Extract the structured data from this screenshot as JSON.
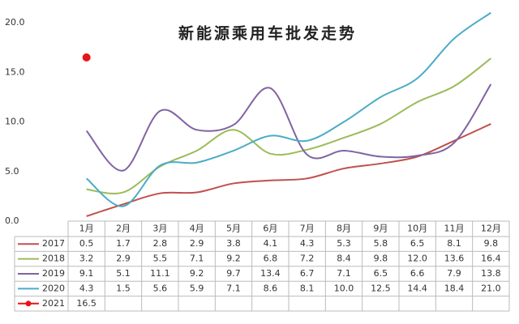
{
  "chart_data": {
    "type": "line",
    "title": "新能源乘用车批发走势",
    "categories": [
      "1月",
      "2月",
      "3月",
      "4月",
      "5月",
      "6月",
      "7月",
      "8月",
      "9月",
      "10月",
      "11月",
      "12月"
    ],
    "ylim": [
      0,
      20
    ],
    "yticks": [
      {
        "value": 0,
        "label": "0.0"
      },
      {
        "value": 5,
        "label": "5.0"
      },
      {
        "value": 10,
        "label": "10.0"
      },
      {
        "value": 15,
        "label": "15.0"
      },
      {
        "value": 20,
        "label": "20.0"
      }
    ],
    "series": [
      {
        "name": "2017",
        "color": "#c0504d",
        "values": [
          0.5,
          1.7,
          2.8,
          2.9,
          3.8,
          4.1,
          4.3,
          5.3,
          5.8,
          6.5,
          8.1,
          9.8
        ],
        "value_labels": [
          "0.5",
          "1.7",
          "2.8",
          "2.9",
          "3.8",
          "4.1",
          "4.3",
          "5.3",
          "5.8",
          "6.5",
          "8.1",
          "9.8"
        ]
      },
      {
        "name": "2018",
        "color": "#9bbb59",
        "values": [
          3.2,
          2.9,
          5.5,
          7.1,
          9.2,
          6.8,
          7.2,
          8.4,
          9.8,
          12.0,
          13.6,
          16.4
        ],
        "value_labels": [
          "3.2",
          "2.9",
          "5.5",
          "7.1",
          "9.2",
          "6.8",
          "7.2",
          "8.4",
          "9.8",
          "12.0",
          "13.6",
          "16.4"
        ]
      },
      {
        "name": "2019",
        "color": "#8064a2",
        "values": [
          9.1,
          5.1,
          11.1,
          9.2,
          9.7,
          13.4,
          6.7,
          7.1,
          6.5,
          6.6,
          7.9,
          13.8
        ],
        "value_labels": [
          "9.1",
          "5.1",
          "11.1",
          "9.2",
          "9.7",
          "13.4",
          "6.7",
          "7.1",
          "6.5",
          "6.6",
          "7.9",
          "13.8"
        ]
      },
      {
        "name": "2020",
        "color": "#4bacc6",
        "values": [
          4.3,
          1.5,
          5.6,
          5.9,
          7.1,
          8.6,
          8.1,
          10.0,
          12.5,
          14.4,
          18.4,
          21.0
        ],
        "value_labels": [
          "4.3",
          "1.5",
          "5.6",
          "5.9",
          "7.1",
          "8.6",
          "8.1",
          "10.0",
          "12.5",
          "14.4",
          "18.4",
          "21.0"
        ]
      },
      {
        "name": "2021",
        "color": "#e8141b",
        "values": [
          16.5,
          null,
          null,
          null,
          null,
          null,
          null,
          null,
          null,
          null,
          null,
          null
        ],
        "value_labels": [
          "16.5",
          null,
          null,
          null,
          null,
          null,
          null,
          null,
          null,
          null,
          null,
          null
        ]
      }
    ]
  }
}
